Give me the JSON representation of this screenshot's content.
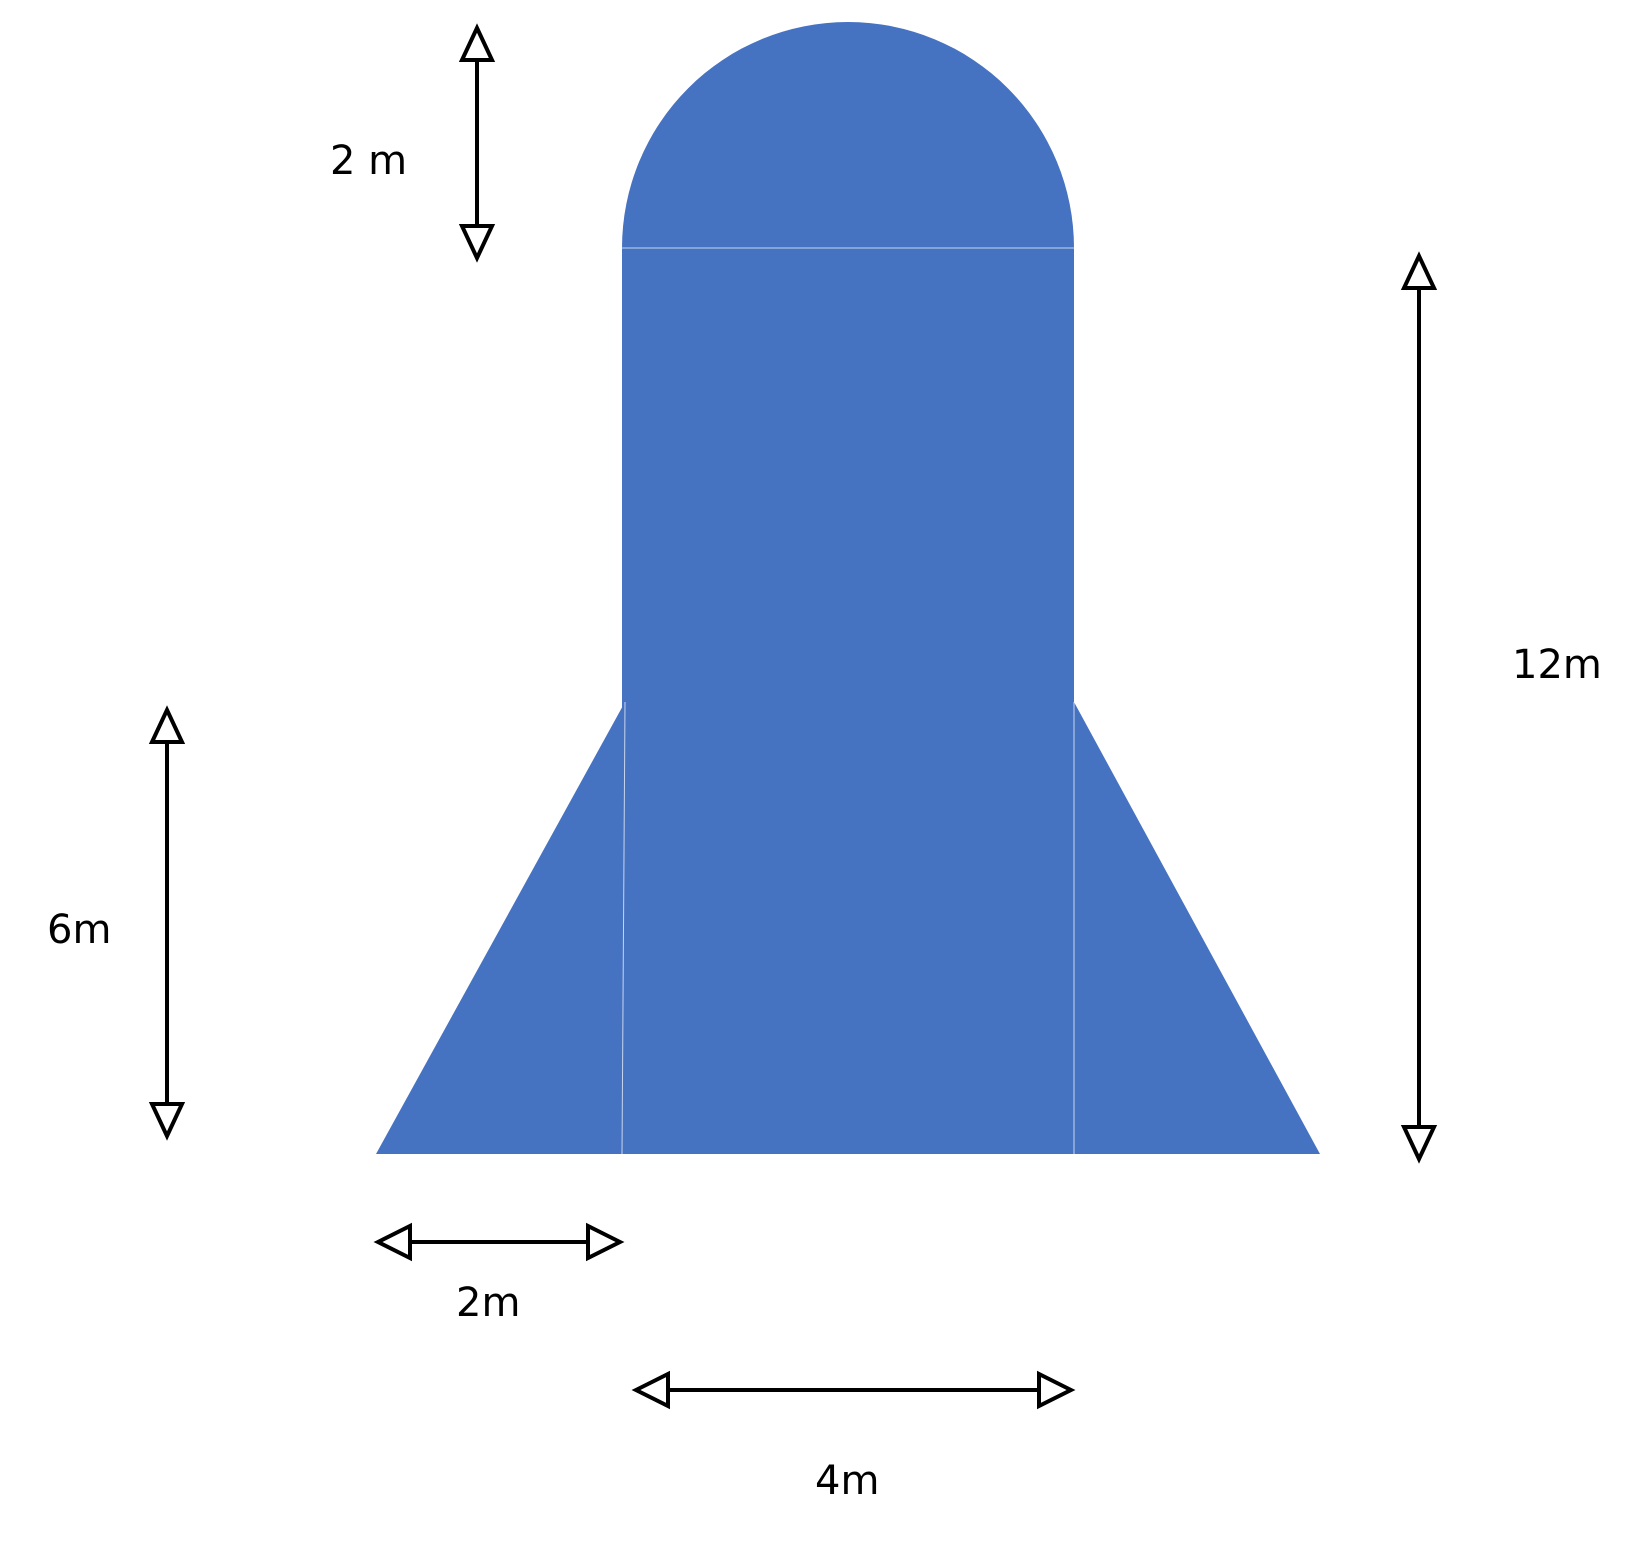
{
  "colors": {
    "shape_fill": "#4672C2",
    "arrow": "#000000",
    "background": "#ffffff"
  },
  "labels": {
    "dome_height": "2 m",
    "body_height": "12m",
    "fin_height": "6m",
    "fin_width": "2m",
    "body_width": "4m"
  }
}
